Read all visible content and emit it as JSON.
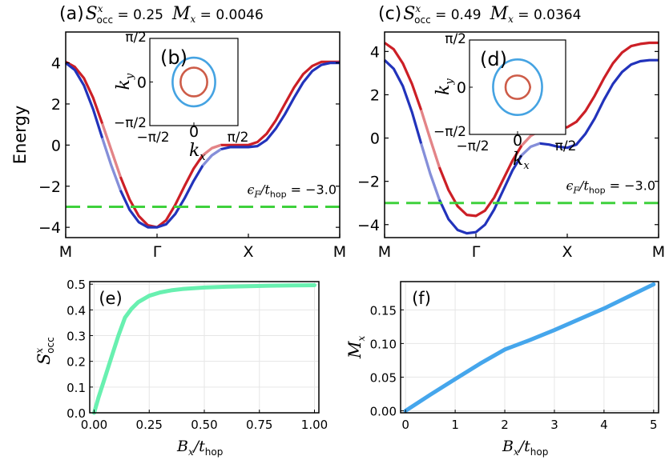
{
  "chart_data": [
    {
      "id": "a",
      "type": "line",
      "panel_label": "(a)",
      "title_s_symbol": "S",
      "title_s_sup": "x",
      "title_s_sub": "occ",
      "title_s_value": "= 0.25",
      "title_m_symbol": "M",
      "title_m_sub": "x",
      "title_m_value": "= 0.0046",
      "ylabel": "Energy",
      "ylim": [
        -4.5,
        5.5
      ],
      "xlim": [
        0,
        3
      ],
      "x_ticks": [
        {
          "pos": 0,
          "label": "M"
        },
        {
          "pos": 1,
          "label": "Γ"
        },
        {
          "pos": 2,
          "label": "X"
        },
        {
          "pos": 3,
          "label": "M"
        }
      ],
      "y_ticks": [
        {
          "value": 4,
          "label": "4"
        },
        {
          "value": 2,
          "label": "2"
        },
        {
          "value": 0,
          "label": "0"
        },
        {
          "value": -2,
          "label": "−2"
        },
        {
          "value": -4,
          "label": "−4"
        }
      ],
      "fermi_level": -3.0,
      "fermi_text": "ϵ",
      "fermi_text_sub": "F",
      "fermi_text_den": "/t",
      "fermi_text_den_sub": "hop",
      "fermi_value_text": "= −3.0",
      "series": [
        {
          "name": "upper band",
          "color": "#cc1f26",
          "x": [
            0,
            0.1,
            0.2,
            0.3,
            0.4,
            0.5,
            0.6,
            0.7,
            0.8,
            0.9,
            1.0,
            1.1,
            1.2,
            1.3,
            1.4,
            1.5,
            1.6,
            1.7,
            1.8,
            1.9,
            2.0,
            2.1,
            2.2,
            2.3,
            2.4,
            2.5,
            2.6,
            2.7,
            2.8,
            2.9,
            3.0
          ],
          "y": [
            4.05,
            3.8,
            3.25,
            2.3,
            1.05,
            -0.25,
            -1.55,
            -2.65,
            -3.45,
            -3.9,
            -4.0,
            -3.65,
            -2.9,
            -2.0,
            -1.15,
            -0.5,
            -0.15,
            0.0,
            0.0,
            0.0,
            0.0,
            0.15,
            0.55,
            1.2,
            2.0,
            2.8,
            3.45,
            3.85,
            4.05,
            4.05,
            4.05
          ]
        },
        {
          "name": "lower band",
          "color": "#2233bb",
          "x": [
            0,
            0.1,
            0.2,
            0.3,
            0.4,
            0.5,
            0.6,
            0.7,
            0.8,
            0.9,
            1.0,
            1.1,
            1.2,
            1.3,
            1.4,
            1.5,
            1.6,
            1.7,
            1.8,
            1.9,
            2.0,
            2.1,
            2.2,
            2.3,
            2.4,
            2.5,
            2.6,
            2.7,
            2.8,
            2.9,
            3.0
          ],
          "y": [
            4.0,
            3.65,
            2.9,
            1.75,
            0.35,
            -1.0,
            -2.2,
            -3.15,
            -3.75,
            -4.0,
            -4.0,
            -3.85,
            -3.35,
            -2.6,
            -1.75,
            -1.0,
            -0.5,
            -0.2,
            -0.1,
            -0.1,
            -0.1,
            -0.05,
            0.25,
            0.8,
            1.5,
            2.3,
            3.05,
            3.6,
            3.9,
            4.0,
            4.0
          ]
        }
      ],
      "inset": {
        "label": "(b)",
        "x_symbol": "k",
        "x_sub": "x",
        "y_symbol": "k",
        "y_sub": "y",
        "ticks": [
          "π/2",
          "0",
          "−π/2"
        ],
        "contours": [
          {
            "name": "outer",
            "color": "#45a3e2",
            "r": 0.93
          },
          {
            "name": "inner",
            "color": "#cd5c48",
            "r": 0.55
          }
        ]
      }
    },
    {
      "id": "c",
      "type": "line",
      "panel_label": "(c)",
      "title_s_symbol": "S",
      "title_s_sup": "x",
      "title_s_sub": "occ",
      "title_s_value": "= 0.49",
      "title_m_symbol": "M",
      "title_m_sub": "x",
      "title_m_value": "= 0.0364",
      "ylim": [
        -4.6,
        4.9
      ],
      "xlim": [
        0,
        3
      ],
      "x_ticks": [
        {
          "pos": 0,
          "label": "M"
        },
        {
          "pos": 1,
          "label": "Γ"
        },
        {
          "pos": 2,
          "label": "X"
        },
        {
          "pos": 3,
          "label": "M"
        }
      ],
      "y_ticks": [
        {
          "value": 4,
          "label": "4"
        },
        {
          "value": 2,
          "label": "2"
        },
        {
          "value": 0,
          "label": "0"
        },
        {
          "value": -2,
          "label": "−2"
        },
        {
          "value": -4,
          "label": "−4"
        }
      ],
      "fermi_level": -3.0,
      "fermi_text": "ϵ",
      "fermi_text_sub": "F",
      "fermi_text_den": "/t",
      "fermi_text_den_sub": "hop",
      "fermi_value_text": "= −3.0",
      "series": [
        {
          "name": "upper band",
          "color": "#cc1f26",
          "x": [
            0,
            0.1,
            0.2,
            0.3,
            0.4,
            0.5,
            0.6,
            0.7,
            0.8,
            0.9,
            1.0,
            1.1,
            1.2,
            1.3,
            1.4,
            1.5,
            1.6,
            1.7,
            1.8,
            1.9,
            2.0,
            2.1,
            2.2,
            2.3,
            2.4,
            2.5,
            2.6,
            2.7,
            2.8,
            2.9,
            3.0
          ],
          "y": [
            4.4,
            4.1,
            3.45,
            2.5,
            1.3,
            -0.05,
            -1.35,
            -2.4,
            -3.15,
            -3.55,
            -3.6,
            -3.35,
            -2.75,
            -1.9,
            -1.05,
            -0.35,
            0.1,
            0.35,
            0.4,
            0.45,
            0.5,
            0.75,
            1.25,
            1.95,
            2.75,
            3.45,
            3.95,
            4.25,
            4.35,
            4.4,
            4.4
          ]
        },
        {
          "name": "lower band",
          "color": "#2233bb",
          "x": [
            0,
            0.1,
            0.2,
            0.3,
            0.4,
            0.5,
            0.6,
            0.7,
            0.8,
            0.9,
            1.0,
            1.1,
            1.2,
            1.3,
            1.4,
            1.5,
            1.6,
            1.7,
            1.8,
            1.9,
            2.0,
            2.1,
            2.2,
            2.3,
            2.4,
            2.5,
            2.6,
            2.7,
            2.8,
            2.9,
            3.0
          ],
          "y": [
            3.6,
            3.2,
            2.4,
            1.2,
            -0.25,
            -1.65,
            -2.85,
            -3.75,
            -4.25,
            -4.4,
            -4.35,
            -4.0,
            -3.3,
            -2.4,
            -1.5,
            -0.8,
            -0.4,
            -0.25,
            -0.3,
            -0.4,
            -0.45,
            -0.3,
            0.2,
            0.9,
            1.75,
            2.5,
            3.05,
            3.4,
            3.55,
            3.6,
            3.6
          ]
        }
      ],
      "inset": {
        "label": "(d)",
        "x_symbol": "k",
        "x_sub": "x",
        "y_symbol": "k",
        "y_sub": "y",
        "ticks": [
          "π/2",
          "0",
          "−π/2"
        ],
        "contours": [
          {
            "name": "outer",
            "color": "#45a3e2",
            "r": 0.98
          },
          {
            "name": "inner",
            "color": "#cd5c48",
            "r": 0.5
          }
        ]
      }
    },
    {
      "id": "e",
      "type": "line",
      "panel_label": "(e)",
      "ylabel_symbol": "S",
      "ylabel_sup": "x",
      "ylabel_sub": "occ",
      "xlabel_symbol": "B",
      "xlabel_sub": "x",
      "xlabel_den": "/t",
      "xlabel_den_sub": "hop",
      "xlim": [
        -0.02,
        1.02
      ],
      "ylim": [
        0,
        0.51
      ],
      "x_ticks": [
        {
          "value": 0.0,
          "label": "0.00"
        },
        {
          "value": 0.25,
          "label": "0.25"
        },
        {
          "value": 0.5,
          "label": "0.50"
        },
        {
          "value": 0.75,
          "label": "0.75"
        },
        {
          "value": 1.0,
          "label": "1.00"
        }
      ],
      "y_ticks": [
        {
          "value": 0.0,
          "label": "0.0"
        },
        {
          "value": 0.1,
          "label": "0.1"
        },
        {
          "value": 0.2,
          "label": "0.2"
        },
        {
          "value": 0.3,
          "label": "0.3"
        },
        {
          "value": 0.4,
          "label": "0.4"
        },
        {
          "value": 0.5,
          "label": "0.5"
        }
      ],
      "series": [
        {
          "name": "S_occ^x",
          "color": "#68f0b0",
          "x": [
            0.0,
            0.02,
            0.05,
            0.08,
            0.11,
            0.14,
            0.17,
            0.2,
            0.25,
            0.3,
            0.35,
            0.4,
            0.5,
            0.6,
            0.7,
            0.8,
            0.9,
            1.0
          ],
          "y": [
            0.0,
            0.06,
            0.14,
            0.22,
            0.3,
            0.37,
            0.405,
            0.43,
            0.455,
            0.468,
            0.476,
            0.481,
            0.487,
            0.49,
            0.492,
            0.494,
            0.495,
            0.496
          ]
        }
      ]
    },
    {
      "id": "f",
      "type": "line",
      "panel_label": "(f)",
      "ylabel_symbol": "M",
      "ylabel_sub": "x",
      "xlabel_symbol": "B",
      "xlabel_sub": "x",
      "xlabel_den": "/t",
      "xlabel_den_sub": "hop",
      "xlim": [
        -0.1,
        5.1
      ],
      "ylim": [
        -0.003,
        0.192
      ],
      "x_ticks": [
        {
          "value": 0,
          "label": "0"
        },
        {
          "value": 1,
          "label": "1"
        },
        {
          "value": 2,
          "label": "2"
        },
        {
          "value": 3,
          "label": "3"
        },
        {
          "value": 4,
          "label": "4"
        },
        {
          "value": 5,
          "label": "5"
        }
      ],
      "y_ticks": [
        {
          "value": 0.0,
          "label": "0.00"
        },
        {
          "value": 0.05,
          "label": "0.05"
        },
        {
          "value": 0.1,
          "label": "0.10"
        },
        {
          "value": 0.15,
          "label": "0.15"
        }
      ],
      "series": [
        {
          "name": "M_x",
          "color": "#45a6ec",
          "x": [
            0,
            0.5,
            1.0,
            1.5,
            2.0,
            2.5,
            3.0,
            3.5,
            4.0,
            4.5,
            5.0
          ],
          "y": [
            0.0,
            0.024,
            0.047,
            0.07,
            0.091,
            0.105,
            0.12,
            0.136,
            0.152,
            0.17,
            0.188
          ]
        }
      ]
    }
  ]
}
